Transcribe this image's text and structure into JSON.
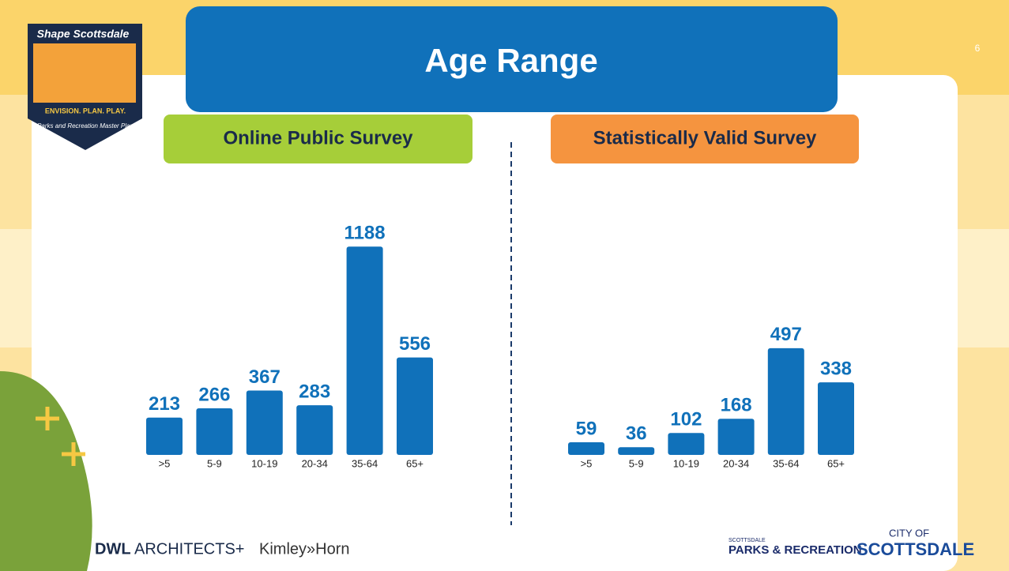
{
  "slide": {
    "title": "Age Range",
    "page_number": "6",
    "logo": {
      "name": "Shape Scottsdale",
      "tagline": "ENVISION. PLAN. PLAY.",
      "subtitle": "Parks and Recreation Master Plan"
    },
    "footer": {
      "dwl": "DWL",
      "architects": "ARCHITECTS+",
      "kimley": "Kimley»Horn",
      "parks_small": "SCOTTSDALE",
      "parks": "PARKS & RECREATION",
      "city_small": "CITY OF",
      "city": "SCOTTSDALE"
    }
  },
  "chart_data": [
    {
      "type": "bar",
      "title": "Online Public Survey",
      "title_color": "#a6ce39",
      "categories": [
        ">5",
        "5-9",
        "10-19",
        "20-34",
        "35-64",
        "65+"
      ],
      "values": [
        213,
        266,
        367,
        283,
        1188,
        556
      ],
      "color": "#1071ba"
    },
    {
      "type": "bar",
      "title": "Statistically Valid Survey",
      "title_color": "#f5943f",
      "categories": [
        ">5",
        "5-9",
        "10-19",
        "20-34",
        "35-64",
        "65+"
      ],
      "values": [
        59,
        36,
        102,
        168,
        497,
        338
      ],
      "color": "#1071ba"
    }
  ]
}
